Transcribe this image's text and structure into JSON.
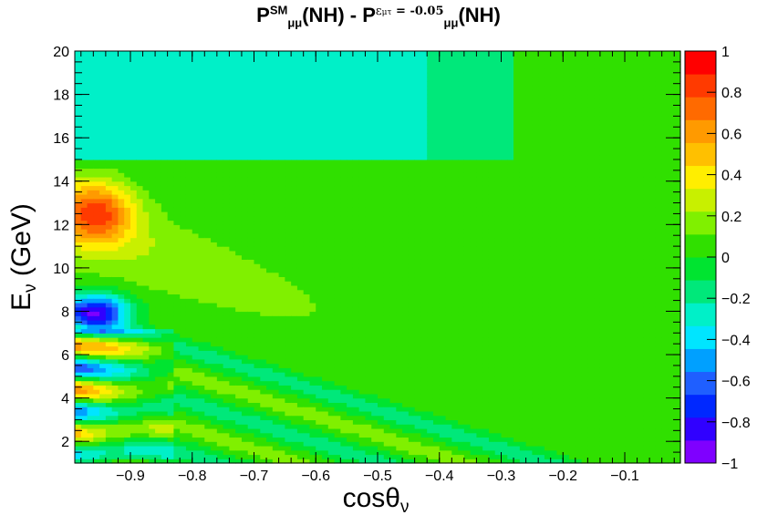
{
  "chart_data": {
    "type": "heatmap",
    "title": {
      "p": "P",
      "sm_sup": "SM",
      "mumu_sub": "μμ",
      "nh": "(NH)",
      "minus": " - ",
      "eps_sup": "ε",
      "eps_sub": "μτ",
      "eps_value": " = -0.05"
    },
    "xlabel": {
      "main": "cosθ",
      "sub": "ν"
    },
    "ylabel": {
      "main": "E",
      "sub": "ν",
      "rest": " (GeV)"
    },
    "xlim": [
      -0.99,
      -0.01
    ],
    "ylim": [
      1,
      20
    ],
    "xticks": [
      -0.9,
      -0.8,
      -0.7,
      -0.6,
      -0.5,
      -0.4,
      -0.3,
      -0.2,
      -0.1
    ],
    "xtick_labels": [
      "−0.9",
      "−0.8",
      "−0.7",
      "−0.6",
      "−0.5",
      "−0.4",
      "−0.3",
      "−0.2",
      "−0.1"
    ],
    "yticks": [
      2,
      4,
      6,
      8,
      10,
      12,
      14,
      16,
      18,
      20
    ],
    "ytick_labels": [
      "2",
      "4",
      "6",
      "8",
      "10",
      "12",
      "14",
      "16",
      "18",
      "20"
    ],
    "zlim": [
      -1,
      1
    ],
    "zticks": [
      -1,
      -0.8,
      -0.6,
      -0.4,
      -0.2,
      0,
      0.2,
      0.4,
      0.6,
      0.8,
      1
    ],
    "ztick_labels": [
      "−1",
      "−0.8",
      "−0.6",
      "−0.4",
      "−0.2",
      "0",
      "0.2",
      "0.4",
      "0.6",
      "0.8",
      "1"
    ],
    "palette": [
      "#7f00ff",
      "#3000ff",
      "#0028ff",
      "#1f5fff",
      "#00a0ff",
      "#00e5ff",
      "#00f0c8",
      "#00e87a",
      "#00e430",
      "#30e000",
      "#80f000",
      "#c8f000",
      "#ffee00",
      "#ffc000",
      "#ff9a00",
      "#ff6a00",
      "#ff3a00",
      "#ff0000"
    ],
    "grid": false,
    "legend": "colorbar-right"
  }
}
